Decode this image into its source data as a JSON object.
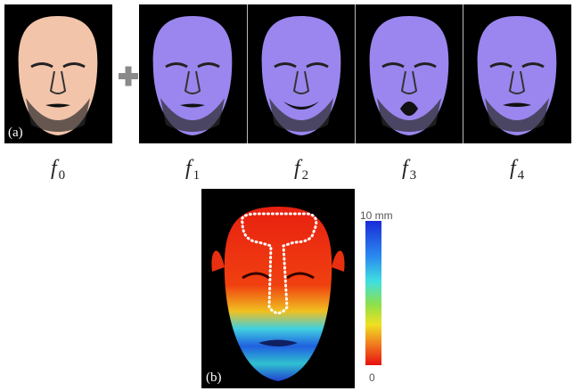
{
  "panel_a": {
    "label": "(a)",
    "faces": [
      {
        "symbol": "f",
        "index": "0"
      },
      {
        "symbol": "f",
        "index": "1"
      },
      {
        "symbol": "f",
        "index": "2"
      },
      {
        "symbol": "f",
        "index": "3"
      },
      {
        "symbol": "f",
        "index": "4"
      }
    ]
  },
  "panel_b": {
    "label": "(b)",
    "colorbar": {
      "top_label": "10 mm",
      "bottom_label": "0"
    }
  }
}
